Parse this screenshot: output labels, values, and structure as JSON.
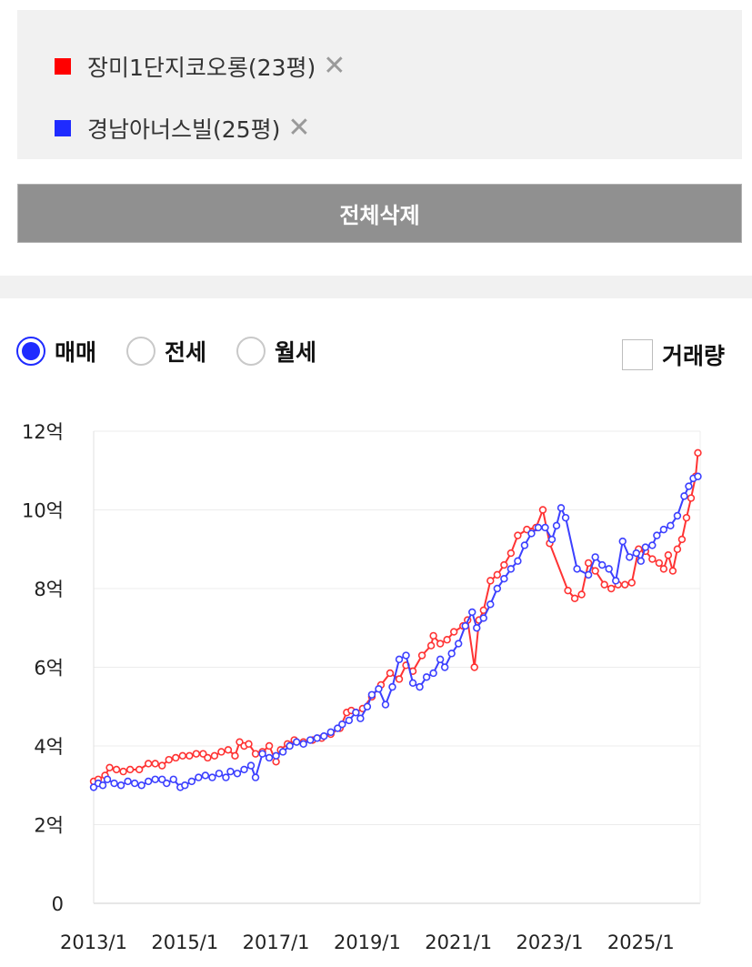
{
  "compare": {
    "items": [
      {
        "label": "장미1단지코오롱(23평)",
        "color": "#ff0000",
        "remove": "✕"
      },
      {
        "label": "경남아너스빌(25평)",
        "color": "#1f2bff",
        "remove": "✕"
      }
    ],
    "delete_all": "전체삭제"
  },
  "options": {
    "radios": [
      {
        "label": "매매",
        "selected": true
      },
      {
        "label": "전세",
        "selected": false
      },
      {
        "label": "월세",
        "selected": false
      }
    ],
    "volume_label": "거래량",
    "volume_checked": false
  },
  "chart_data": {
    "type": "line",
    "title": "",
    "xlabel": "",
    "ylabel": "",
    "ylim": [
      0,
      12
    ],
    "xlim": [
      2013.0,
      2026.3
    ],
    "y_ticks": [
      0,
      2,
      4,
      6,
      8,
      10,
      12
    ],
    "y_tick_labels": [
      "0",
      "2억",
      "4억",
      "6억",
      "8억",
      "10억",
      "12억"
    ],
    "x_ticks": [
      2013,
      2015,
      2017,
      2019,
      2021,
      2023,
      2025
    ],
    "x_tick_labels": [
      "2013/1",
      "2015/1",
      "2017/1",
      "2019/1",
      "2021/1",
      "2023/1",
      "2025/1"
    ],
    "grid": true,
    "series": [
      {
        "name": "장미1단지코오롱(23평)",
        "color": "#ff3333",
        "points": [
          [
            2013.0,
            3.1
          ],
          [
            2013.1,
            3.15
          ],
          [
            2013.25,
            3.25
          ],
          [
            2013.35,
            3.45
          ],
          [
            2013.5,
            3.4
          ],
          [
            2013.65,
            3.35
          ],
          [
            2013.8,
            3.4
          ],
          [
            2014.0,
            3.4
          ],
          [
            2014.2,
            3.55
          ],
          [
            2014.35,
            3.55
          ],
          [
            2014.5,
            3.5
          ],
          [
            2014.65,
            3.65
          ],
          [
            2014.8,
            3.7
          ],
          [
            2014.95,
            3.75
          ],
          [
            2015.1,
            3.75
          ],
          [
            2015.25,
            3.8
          ],
          [
            2015.4,
            3.8
          ],
          [
            2015.5,
            3.7
          ],
          [
            2015.65,
            3.75
          ],
          [
            2015.8,
            3.85
          ],
          [
            2015.95,
            3.9
          ],
          [
            2016.1,
            3.75
          ],
          [
            2016.2,
            4.1
          ],
          [
            2016.3,
            4.0
          ],
          [
            2016.4,
            4.05
          ],
          [
            2016.55,
            3.8
          ],
          [
            2016.7,
            3.85
          ],
          [
            2016.85,
            4.0
          ],
          [
            2017.0,
            3.6
          ],
          [
            2017.1,
            3.9
          ],
          [
            2017.25,
            4.05
          ],
          [
            2017.4,
            4.15
          ],
          [
            2017.6,
            4.1
          ],
          [
            2017.8,
            4.15
          ],
          [
            2018.0,
            4.2
          ],
          [
            2018.2,
            4.3
          ],
          [
            2018.4,
            4.45
          ],
          [
            2018.55,
            4.85
          ],
          [
            2018.65,
            4.9
          ],
          [
            2018.75,
            4.85
          ],
          [
            2018.9,
            4.95
          ],
          [
            2019.1,
            5.25
          ],
          [
            2019.3,
            5.55
          ],
          [
            2019.5,
            5.85
          ],
          [
            2019.7,
            5.7
          ],
          [
            2019.85,
            6.05
          ],
          [
            2020.0,
            5.9
          ],
          [
            2020.2,
            6.3
          ],
          [
            2020.4,
            6.55
          ],
          [
            2020.45,
            6.8
          ],
          [
            2020.6,
            6.6
          ],
          [
            2020.75,
            6.7
          ],
          [
            2020.9,
            6.9
          ],
          [
            2021.1,
            7.05
          ],
          [
            2021.2,
            7.2
          ],
          [
            2021.35,
            6.0
          ],
          [
            2021.45,
            7.2
          ],
          [
            2021.55,
            7.45
          ],
          [
            2021.7,
            8.2
          ],
          [
            2021.85,
            8.35
          ],
          [
            2022.0,
            8.6
          ],
          [
            2022.15,
            8.9
          ],
          [
            2022.3,
            9.35
          ],
          [
            2022.5,
            9.5
          ],
          [
            2022.7,
            9.55
          ],
          [
            2022.85,
            10.0
          ],
          [
            2023.0,
            9.15
          ],
          [
            2023.4,
            7.95
          ],
          [
            2023.55,
            7.75
          ],
          [
            2023.7,
            7.85
          ],
          [
            2023.85,
            8.65
          ],
          [
            2024.0,
            8.45
          ],
          [
            2024.2,
            8.1
          ],
          [
            2024.35,
            8.0
          ],
          [
            2024.5,
            8.1
          ],
          [
            2024.65,
            8.1
          ],
          [
            2024.8,
            8.15
          ],
          [
            2024.95,
            9.0
          ],
          [
            2025.1,
            8.95
          ],
          [
            2025.25,
            8.75
          ],
          [
            2025.4,
            8.65
          ],
          [
            2025.5,
            8.5
          ],
          [
            2025.6,
            8.85
          ],
          [
            2025.7,
            8.45
          ],
          [
            2025.8,
            9.0
          ],
          [
            2025.9,
            9.25
          ],
          [
            2026.0,
            9.8
          ],
          [
            2026.1,
            10.3
          ],
          [
            2026.2,
            10.85
          ],
          [
            2026.25,
            11.45
          ]
        ]
      },
      {
        "name": "경남아너스빌(25평)",
        "color": "#3c40ff",
        "points": [
          [
            2013.0,
            2.95
          ],
          [
            2013.1,
            3.05
          ],
          [
            2013.2,
            3.0
          ],
          [
            2013.3,
            3.15
          ],
          [
            2013.45,
            3.05
          ],
          [
            2013.6,
            3.0
          ],
          [
            2013.75,
            3.1
          ],
          [
            2013.9,
            3.05
          ],
          [
            2014.05,
            3.0
          ],
          [
            2014.2,
            3.1
          ],
          [
            2014.35,
            3.15
          ],
          [
            2014.5,
            3.15
          ],
          [
            2014.6,
            3.05
          ],
          [
            2014.75,
            3.15
          ],
          [
            2014.9,
            2.95
          ],
          [
            2015.0,
            3.0
          ],
          [
            2015.15,
            3.1
          ],
          [
            2015.3,
            3.2
          ],
          [
            2015.45,
            3.25
          ],
          [
            2015.6,
            3.2
          ],
          [
            2015.75,
            3.3
          ],
          [
            2015.9,
            3.2
          ],
          [
            2016.0,
            3.35
          ],
          [
            2016.15,
            3.3
          ],
          [
            2016.3,
            3.4
          ],
          [
            2016.45,
            3.5
          ],
          [
            2016.55,
            3.2
          ],
          [
            2016.7,
            3.8
          ],
          [
            2016.85,
            3.7
          ],
          [
            2017.0,
            3.75
          ],
          [
            2017.15,
            3.85
          ],
          [
            2017.3,
            4.0
          ],
          [
            2017.45,
            4.1
          ],
          [
            2017.6,
            4.05
          ],
          [
            2017.75,
            4.15
          ],
          [
            2017.9,
            4.2
          ],
          [
            2018.05,
            4.25
          ],
          [
            2018.2,
            4.35
          ],
          [
            2018.35,
            4.45
          ],
          [
            2018.45,
            4.55
          ],
          [
            2018.6,
            4.65
          ],
          [
            2018.75,
            4.85
          ],
          [
            2018.85,
            4.7
          ],
          [
            2019.0,
            5.0
          ],
          [
            2019.1,
            5.3
          ],
          [
            2019.25,
            5.45
          ],
          [
            2019.4,
            5.05
          ],
          [
            2019.55,
            5.5
          ],
          [
            2019.7,
            6.2
          ],
          [
            2019.85,
            6.3
          ],
          [
            2020.0,
            5.6
          ],
          [
            2020.15,
            5.5
          ],
          [
            2020.3,
            5.75
          ],
          [
            2020.45,
            5.85
          ],
          [
            2020.6,
            6.2
          ],
          [
            2020.7,
            6.0
          ],
          [
            2020.85,
            6.35
          ],
          [
            2021.0,
            6.6
          ],
          [
            2021.15,
            7.05
          ],
          [
            2021.3,
            7.4
          ],
          [
            2021.4,
            7.0
          ],
          [
            2021.55,
            7.25
          ],
          [
            2021.7,
            7.6
          ],
          [
            2021.85,
            8.0
          ],
          [
            2022.0,
            8.25
          ],
          [
            2022.15,
            8.5
          ],
          [
            2022.3,
            8.7
          ],
          [
            2022.45,
            9.1
          ],
          [
            2022.6,
            9.4
          ],
          [
            2022.75,
            9.55
          ],
          [
            2022.9,
            9.55
          ],
          [
            2023.05,
            9.25
          ],
          [
            2023.15,
            9.6
          ],
          [
            2023.25,
            10.05
          ],
          [
            2023.35,
            9.8
          ],
          [
            2023.6,
            8.5
          ],
          [
            2023.85,
            8.35
          ],
          [
            2024.0,
            8.8
          ],
          [
            2024.15,
            8.6
          ],
          [
            2024.3,
            8.5
          ],
          [
            2024.45,
            8.2
          ],
          [
            2024.6,
            9.2
          ],
          [
            2024.75,
            8.8
          ],
          [
            2024.9,
            8.9
          ],
          [
            2025.0,
            8.7
          ],
          [
            2025.1,
            9.05
          ],
          [
            2025.25,
            9.1
          ],
          [
            2025.35,
            9.35
          ],
          [
            2025.5,
            9.5
          ],
          [
            2025.65,
            9.6
          ],
          [
            2025.8,
            9.85
          ],
          [
            2025.95,
            10.35
          ],
          [
            2026.05,
            10.6
          ],
          [
            2026.15,
            10.8
          ],
          [
            2026.25,
            10.85
          ]
        ]
      }
    ]
  }
}
